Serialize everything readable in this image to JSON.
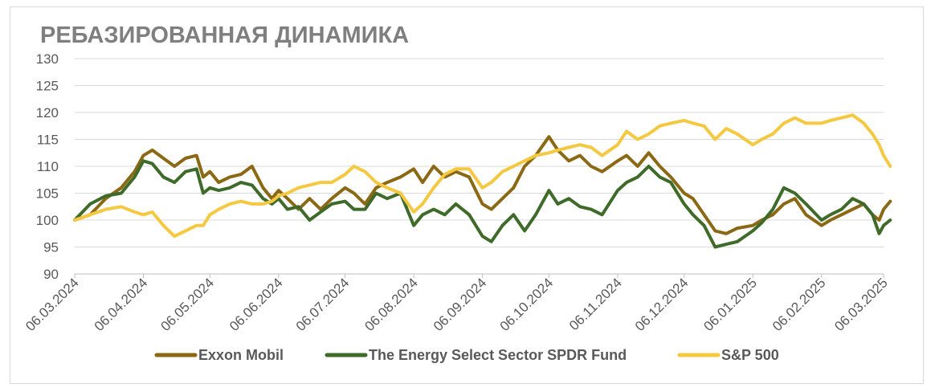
{
  "chart_data": {
    "type": "line",
    "title": "РЕБАЗИРОВАННАЯ ДИНАМИКА",
    "xlabel": "",
    "ylabel": "",
    "ylim": [
      90,
      130
    ],
    "yticks": [
      90,
      95,
      100,
      105,
      110,
      115,
      120,
      125,
      130
    ],
    "xticks": [
      "06.03.2024",
      "06.04.2024",
      "06.05.2024",
      "06.06.2024",
      "06.07.2024",
      "06.08.2024",
      "06.09.2024",
      "06.10.2024",
      "06.11.2024",
      "06.12.2024",
      "06.01.2025",
      "06.02.2025",
      "06.03.2025"
    ],
    "grid": true,
    "legend_position": "bottom",
    "colors": {
      "Exxon Mobil": "#8b6914",
      "The Energy Select Sector SPDR Fund": "#3e6b2a",
      "S&P 500": "#f5c842"
    },
    "series": [
      {
        "name": "Exxon Mobil",
        "color": "#8b6914",
        "points": [
          [
            "06.03.2024",
            100
          ],
          [
            "13.03.2024",
            101
          ],
          [
            "20.03.2024",
            104
          ],
          [
            "27.03.2024",
            106
          ],
          [
            "02.04.2024",
            109
          ],
          [
            "06.04.2024",
            112
          ],
          [
            "10.04.2024",
            113
          ],
          [
            "15.04.2024",
            111.5
          ],
          [
            "20.04.2024",
            110
          ],
          [
            "25.04.2024",
            111.5
          ],
          [
            "30.04.2024",
            112
          ],
          [
            "03.05.2024",
            108
          ],
          [
            "06.05.2024",
            109
          ],
          [
            "10.05.2024",
            107
          ],
          [
            "15.05.2024",
            108
          ],
          [
            "20.05.2024",
            108.5
          ],
          [
            "25.05.2024",
            110
          ],
          [
            "30.05.2024",
            106
          ],
          [
            "03.06.2024",
            104
          ],
          [
            "06.06.2024",
            105.5
          ],
          [
            "10.06.2024",
            104
          ],
          [
            "15.06.2024",
            102
          ],
          [
            "20.06.2024",
            104
          ],
          [
            "25.06.2024",
            102
          ],
          [
            "30.06.2024",
            104
          ],
          [
            "06.07.2024",
            106
          ],
          [
            "10.07.2024",
            105
          ],
          [
            "15.07.2024",
            103
          ],
          [
            "20.07.2024",
            106
          ],
          [
            "25.07.2024",
            107
          ],
          [
            "31.07.2024",
            108
          ],
          [
            "06.08.2024",
            109.5
          ],
          [
            "10.08.2024",
            107
          ],
          [
            "15.08.2024",
            110
          ],
          [
            "20.08.2024",
            108
          ],
          [
            "25.08.2024",
            109
          ],
          [
            "31.08.2024",
            108
          ],
          [
            "06.09.2024",
            103
          ],
          [
            "10.09.2024",
            102
          ],
          [
            "15.09.2024",
            104
          ],
          [
            "20.09.2024",
            106
          ],
          [
            "25.09.2024",
            110
          ],
          [
            "30.09.2024",
            112
          ],
          [
            "06.10.2024",
            115.5
          ],
          [
            "10.10.2024",
            113
          ],
          [
            "15.10.2024",
            111
          ],
          [
            "20.10.2024",
            112
          ],
          [
            "25.10.2024",
            110
          ],
          [
            "30.10.2024",
            109
          ],
          [
            "06.11.2024",
            111
          ],
          [
            "10.11.2024",
            112
          ],
          [
            "15.11.2024",
            110
          ],
          [
            "20.11.2024",
            112.5
          ],
          [
            "25.11.2024",
            110
          ],
          [
            "30.11.2024",
            108
          ],
          [
            "06.12.2024",
            105
          ],
          [
            "10.12.2024",
            104
          ],
          [
            "15.12.2024",
            101
          ],
          [
            "20.12.2024",
            98
          ],
          [
            "25.12.2024",
            97.5
          ],
          [
            "30.12.2024",
            98.5
          ],
          [
            "06.01.2025",
            99
          ],
          [
            "10.01.2025",
            100
          ],
          [
            "15.01.2025",
            101
          ],
          [
            "20.01.2025",
            103
          ],
          [
            "25.01.2025",
            104
          ],
          [
            "30.01.2025",
            101
          ],
          [
            "06.02.2025",
            99
          ],
          [
            "10.02.2025",
            100
          ],
          [
            "15.02.2025",
            101
          ],
          [
            "20.02.2025",
            102
          ],
          [
            "25.02.2025",
            103
          ],
          [
            "01.03.2025",
            101
          ],
          [
            "04.03.2025",
            100
          ],
          [
            "06.03.2025",
            102
          ],
          [
            "09.03.2025",
            103.5
          ]
        ]
      },
      {
        "name": "The Energy Select Sector SPDR Fund",
        "color": "#3e6b2a",
        "points": [
          [
            "06.03.2024",
            100
          ],
          [
            "13.03.2024",
            103
          ],
          [
            "20.03.2024",
            104.5
          ],
          [
            "27.03.2024",
            105
          ],
          [
            "02.04.2024",
            108
          ],
          [
            "06.04.2024",
            111
          ],
          [
            "10.04.2024",
            110.5
          ],
          [
            "15.04.2024",
            108
          ],
          [
            "20.04.2024",
            107
          ],
          [
            "25.04.2024",
            109
          ],
          [
            "30.04.2024",
            109.5
          ],
          [
            "03.05.2024",
            105
          ],
          [
            "06.05.2024",
            106
          ],
          [
            "10.05.2024",
            105.5
          ],
          [
            "15.05.2024",
            106
          ],
          [
            "20.05.2024",
            107
          ],
          [
            "25.05.2024",
            106.5
          ],
          [
            "30.05.2024",
            104
          ],
          [
            "03.06.2024",
            103
          ],
          [
            "06.06.2024",
            104
          ],
          [
            "10.06.2024",
            102
          ],
          [
            "15.06.2024",
            102.5
          ],
          [
            "20.06.2024",
            100
          ],
          [
            "25.06.2024",
            101.5
          ],
          [
            "30.06.2024",
            103
          ],
          [
            "06.07.2024",
            103.5
          ],
          [
            "10.07.2024",
            102
          ],
          [
            "15.07.2024",
            102
          ],
          [
            "20.07.2024",
            105
          ],
          [
            "25.07.2024",
            104
          ],
          [
            "31.07.2024",
            105
          ],
          [
            "06.08.2024",
            99
          ],
          [
            "10.08.2024",
            101
          ],
          [
            "15.08.2024",
            102
          ],
          [
            "20.08.2024",
            101
          ],
          [
            "25.08.2024",
            103
          ],
          [
            "31.08.2024",
            101
          ],
          [
            "06.09.2024",
            97
          ],
          [
            "10.09.2024",
            96
          ],
          [
            "15.09.2024",
            99
          ],
          [
            "20.09.2024",
            101
          ],
          [
            "25.09.2024",
            98
          ],
          [
            "30.09.2024",
            101
          ],
          [
            "06.10.2024",
            105.5
          ],
          [
            "10.10.2024",
            103
          ],
          [
            "15.10.2024",
            104
          ],
          [
            "20.10.2024",
            102.5
          ],
          [
            "25.10.2024",
            102
          ],
          [
            "30.10.2024",
            101
          ],
          [
            "06.11.2024",
            105.5
          ],
          [
            "10.11.2024",
            107
          ],
          [
            "15.11.2024",
            108
          ],
          [
            "20.11.2024",
            110
          ],
          [
            "25.11.2024",
            108
          ],
          [
            "30.11.2024",
            107
          ],
          [
            "06.12.2024",
            103
          ],
          [
            "10.12.2024",
            101
          ],
          [
            "15.12.2024",
            99
          ],
          [
            "20.12.2024",
            95
          ],
          [
            "25.12.2024",
            95.5
          ],
          [
            "30.12.2024",
            96
          ],
          [
            "06.01.2025",
            98
          ],
          [
            "10.01.2025",
            99.5
          ],
          [
            "15.01.2025",
            102
          ],
          [
            "20.01.2025",
            106
          ],
          [
            "25.01.2025",
            105
          ],
          [
            "30.01.2025",
            103
          ],
          [
            "06.02.2025",
            100
          ],
          [
            "10.02.2025",
            101
          ],
          [
            "15.02.2025",
            102
          ],
          [
            "20.02.2025",
            104
          ],
          [
            "25.02.2025",
            103
          ],
          [
            "01.03.2025",
            101
          ],
          [
            "04.03.2025",
            97.5
          ],
          [
            "06.03.2025",
            99
          ],
          [
            "09.03.2025",
            100
          ]
        ]
      },
      {
        "name": "S&P 500",
        "color": "#f5c842",
        "points": [
          [
            "06.03.2024",
            100
          ],
          [
            "13.03.2024",
            101
          ],
          [
            "20.03.2024",
            102
          ],
          [
            "27.03.2024",
            102.5
          ],
          [
            "02.04.2024",
            101.5
          ],
          [
            "06.04.2024",
            101
          ],
          [
            "10.04.2024",
            101.5
          ],
          [
            "15.04.2024",
            99
          ],
          [
            "20.04.2024",
            97
          ],
          [
            "25.04.2024",
            98
          ],
          [
            "30.04.2024",
            99
          ],
          [
            "03.05.2024",
            99
          ],
          [
            "06.05.2024",
            101
          ],
          [
            "10.05.2024",
            102
          ],
          [
            "15.05.2024",
            103
          ],
          [
            "20.05.2024",
            103.5
          ],
          [
            "25.05.2024",
            103
          ],
          [
            "30.05.2024",
            103
          ],
          [
            "03.06.2024",
            103.5
          ],
          [
            "06.06.2024",
            104.5
          ],
          [
            "10.06.2024",
            105
          ],
          [
            "15.06.2024",
            106
          ],
          [
            "20.06.2024",
            106.5
          ],
          [
            "25.06.2024",
            107
          ],
          [
            "30.06.2024",
            107
          ],
          [
            "06.07.2024",
            108.5
          ],
          [
            "10.07.2024",
            110
          ],
          [
            "15.07.2024",
            109
          ],
          [
            "20.07.2024",
            107
          ],
          [
            "25.07.2024",
            106
          ],
          [
            "31.07.2024",
            105
          ],
          [
            "06.08.2024",
            101.5
          ],
          [
            "10.08.2024",
            103
          ],
          [
            "15.08.2024",
            106
          ],
          [
            "20.08.2024",
            108.5
          ],
          [
            "25.08.2024",
            109.5
          ],
          [
            "31.08.2024",
            109.5
          ],
          [
            "06.09.2024",
            106
          ],
          [
            "10.09.2024",
            107
          ],
          [
            "15.09.2024",
            109
          ],
          [
            "20.09.2024",
            110
          ],
          [
            "25.09.2024",
            111
          ],
          [
            "30.09.2024",
            112
          ],
          [
            "06.10.2024",
            112.5
          ],
          [
            "10.10.2024",
            113
          ],
          [
            "15.10.2024",
            113.5
          ],
          [
            "20.10.2024",
            114
          ],
          [
            "25.10.2024",
            113.5
          ],
          [
            "30.10.2024",
            112
          ],
          [
            "06.11.2024",
            114
          ],
          [
            "10.11.2024",
            116.5
          ],
          [
            "15.11.2024",
            115
          ],
          [
            "20.11.2024",
            116
          ],
          [
            "25.11.2024",
            117.5
          ],
          [
            "30.11.2024",
            118
          ],
          [
            "06.12.2024",
            118.5
          ],
          [
            "10.12.2024",
            118
          ],
          [
            "15.12.2024",
            117.5
          ],
          [
            "20.12.2024",
            115
          ],
          [
            "25.12.2024",
            117
          ],
          [
            "30.12.2024",
            116
          ],
          [
            "06.01.2025",
            114
          ],
          [
            "10.01.2025",
            115
          ],
          [
            "15.01.2025",
            116
          ],
          [
            "20.01.2025",
            118
          ],
          [
            "25.01.2025",
            119
          ],
          [
            "30.01.2025",
            118
          ],
          [
            "06.02.2025",
            118
          ],
          [
            "10.02.2025",
            118.5
          ],
          [
            "15.02.2025",
            119
          ],
          [
            "20.02.2025",
            119.5
          ],
          [
            "25.02.2025",
            118
          ],
          [
            "01.03.2025",
            116
          ],
          [
            "04.03.2025",
            114
          ],
          [
            "06.03.2025",
            112
          ],
          [
            "09.03.2025",
            110
          ]
        ]
      }
    ]
  }
}
